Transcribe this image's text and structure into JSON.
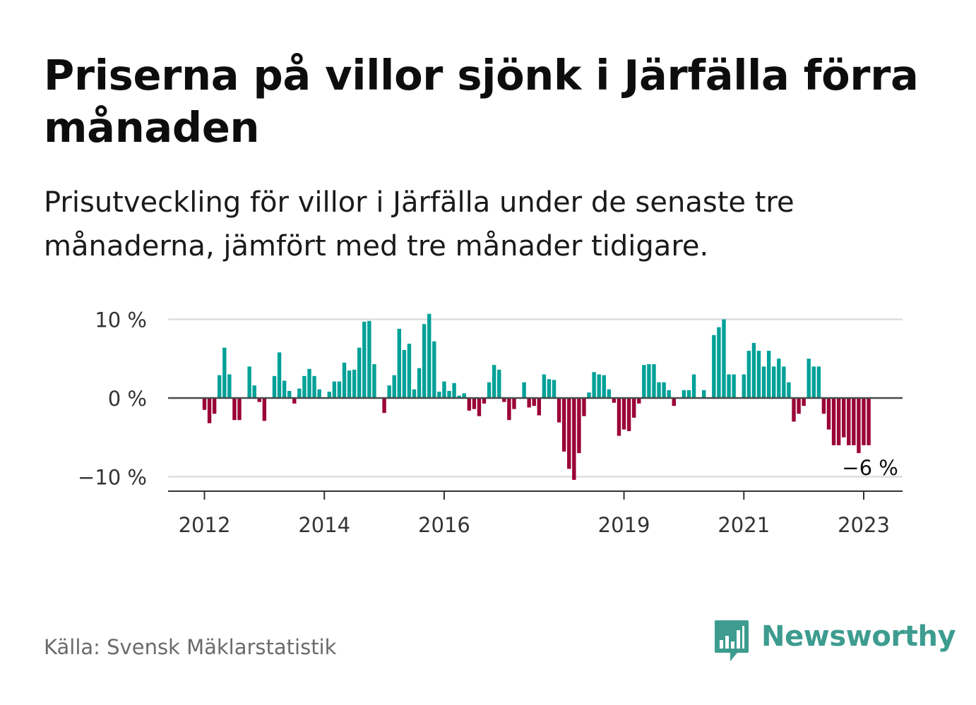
{
  "header": {
    "title": "Priserna på villor sjönk i Järfälla förra månaden",
    "subtitle": "Prisutveckling för villor i Järfälla under de senaste tre månaderna, jämfört med tre månader tidigare."
  },
  "footer": {
    "source": "Källa: Svensk Mäklarstatistik",
    "brand": "Newsworthy"
  },
  "colors": {
    "positive": "#00a198",
    "negative": "#9a0036",
    "gridline": "#dddddd",
    "zero_line": "#4a4a4a",
    "brand": "#3d9c8f"
  },
  "icons": {
    "brand_logo": "newsworthy-bar-chart-speech-bubble-icon"
  },
  "chart_data": {
    "type": "bar",
    "title": "",
    "xlabel": "",
    "ylabel": "",
    "ylim": [
      -12,
      12
    ],
    "y_ticks": [
      {
        "value": 10,
        "label": "10 %"
      },
      {
        "value": 0,
        "label": "0 %"
      },
      {
        "value": -10,
        "label": "−10 %"
      }
    ],
    "x_tick_labels": [
      {
        "date": "2012-01",
        "label": "2012"
      },
      {
        "date": "2014-01",
        "label": "2014"
      },
      {
        "date": "2016-01",
        "label": "2016"
      },
      {
        "date": "2019-01",
        "label": "2019"
      },
      {
        "date": "2021-01",
        "label": "2021"
      },
      {
        "date": "2023-01",
        "label": "2023"
      }
    ],
    "grid": true,
    "legend": "none",
    "first_month": "2012-01",
    "series": [
      {
        "values": [
          -1.5,
          -3.2,
          -2,
          2.9,
          6.4,
          3,
          -2.8,
          -2.8,
          0,
          4,
          1.6,
          -0.5,
          -2.9,
          0,
          2.8,
          5.8,
          2.2,
          0.9,
          -0.7,
          1.2,
          2.8,
          3.7,
          2.8,
          1.1,
          0,
          0.8,
          2.1,
          2.1,
          4.5,
          3.5,
          3.6,
          6.4,
          9.7,
          9.8,
          4.3,
          0,
          -1.9,
          1.6,
          2.9,
          8.8,
          6.1,
          6.9,
          1.1,
          3.8,
          9.4,
          10.7,
          7.2,
          0.8,
          2.1,
          0.9,
          1.9,
          0.3,
          0.6,
          -1.6,
          -1.4,
          -2.3,
          -0.7,
          2,
          4.2,
          3.6,
          -0.5,
          -2.8,
          -1.4,
          0,
          2,
          -1.2,
          -1,
          -2.2,
          3,
          2.4,
          2.3,
          -3.1,
          -6.8,
          -9,
          -10.4,
          -7,
          -2.3,
          0.7,
          3.3,
          3,
          2.9,
          1.1,
          -0.6,
          -4.8,
          -4,
          -4.2,
          -2.5,
          -0.7,
          4.2,
          4.3,
          4.3,
          2,
          2,
          1,
          -1,
          0,
          1,
          1,
          3,
          0,
          1,
          0,
          8,
          9,
          10,
          3,
          3,
          0,
          3,
          6,
          7,
          6,
          4,
          6,
          4,
          5,
          4,
          2,
          -3,
          -2,
          -1,
          5,
          4,
          4,
          -2,
          -4,
          -6,
          -6,
          -5,
          -6,
          -6,
          -7,
          -6,
          -6
        ]
      }
    ],
    "last_value_label": "−6 %"
  }
}
